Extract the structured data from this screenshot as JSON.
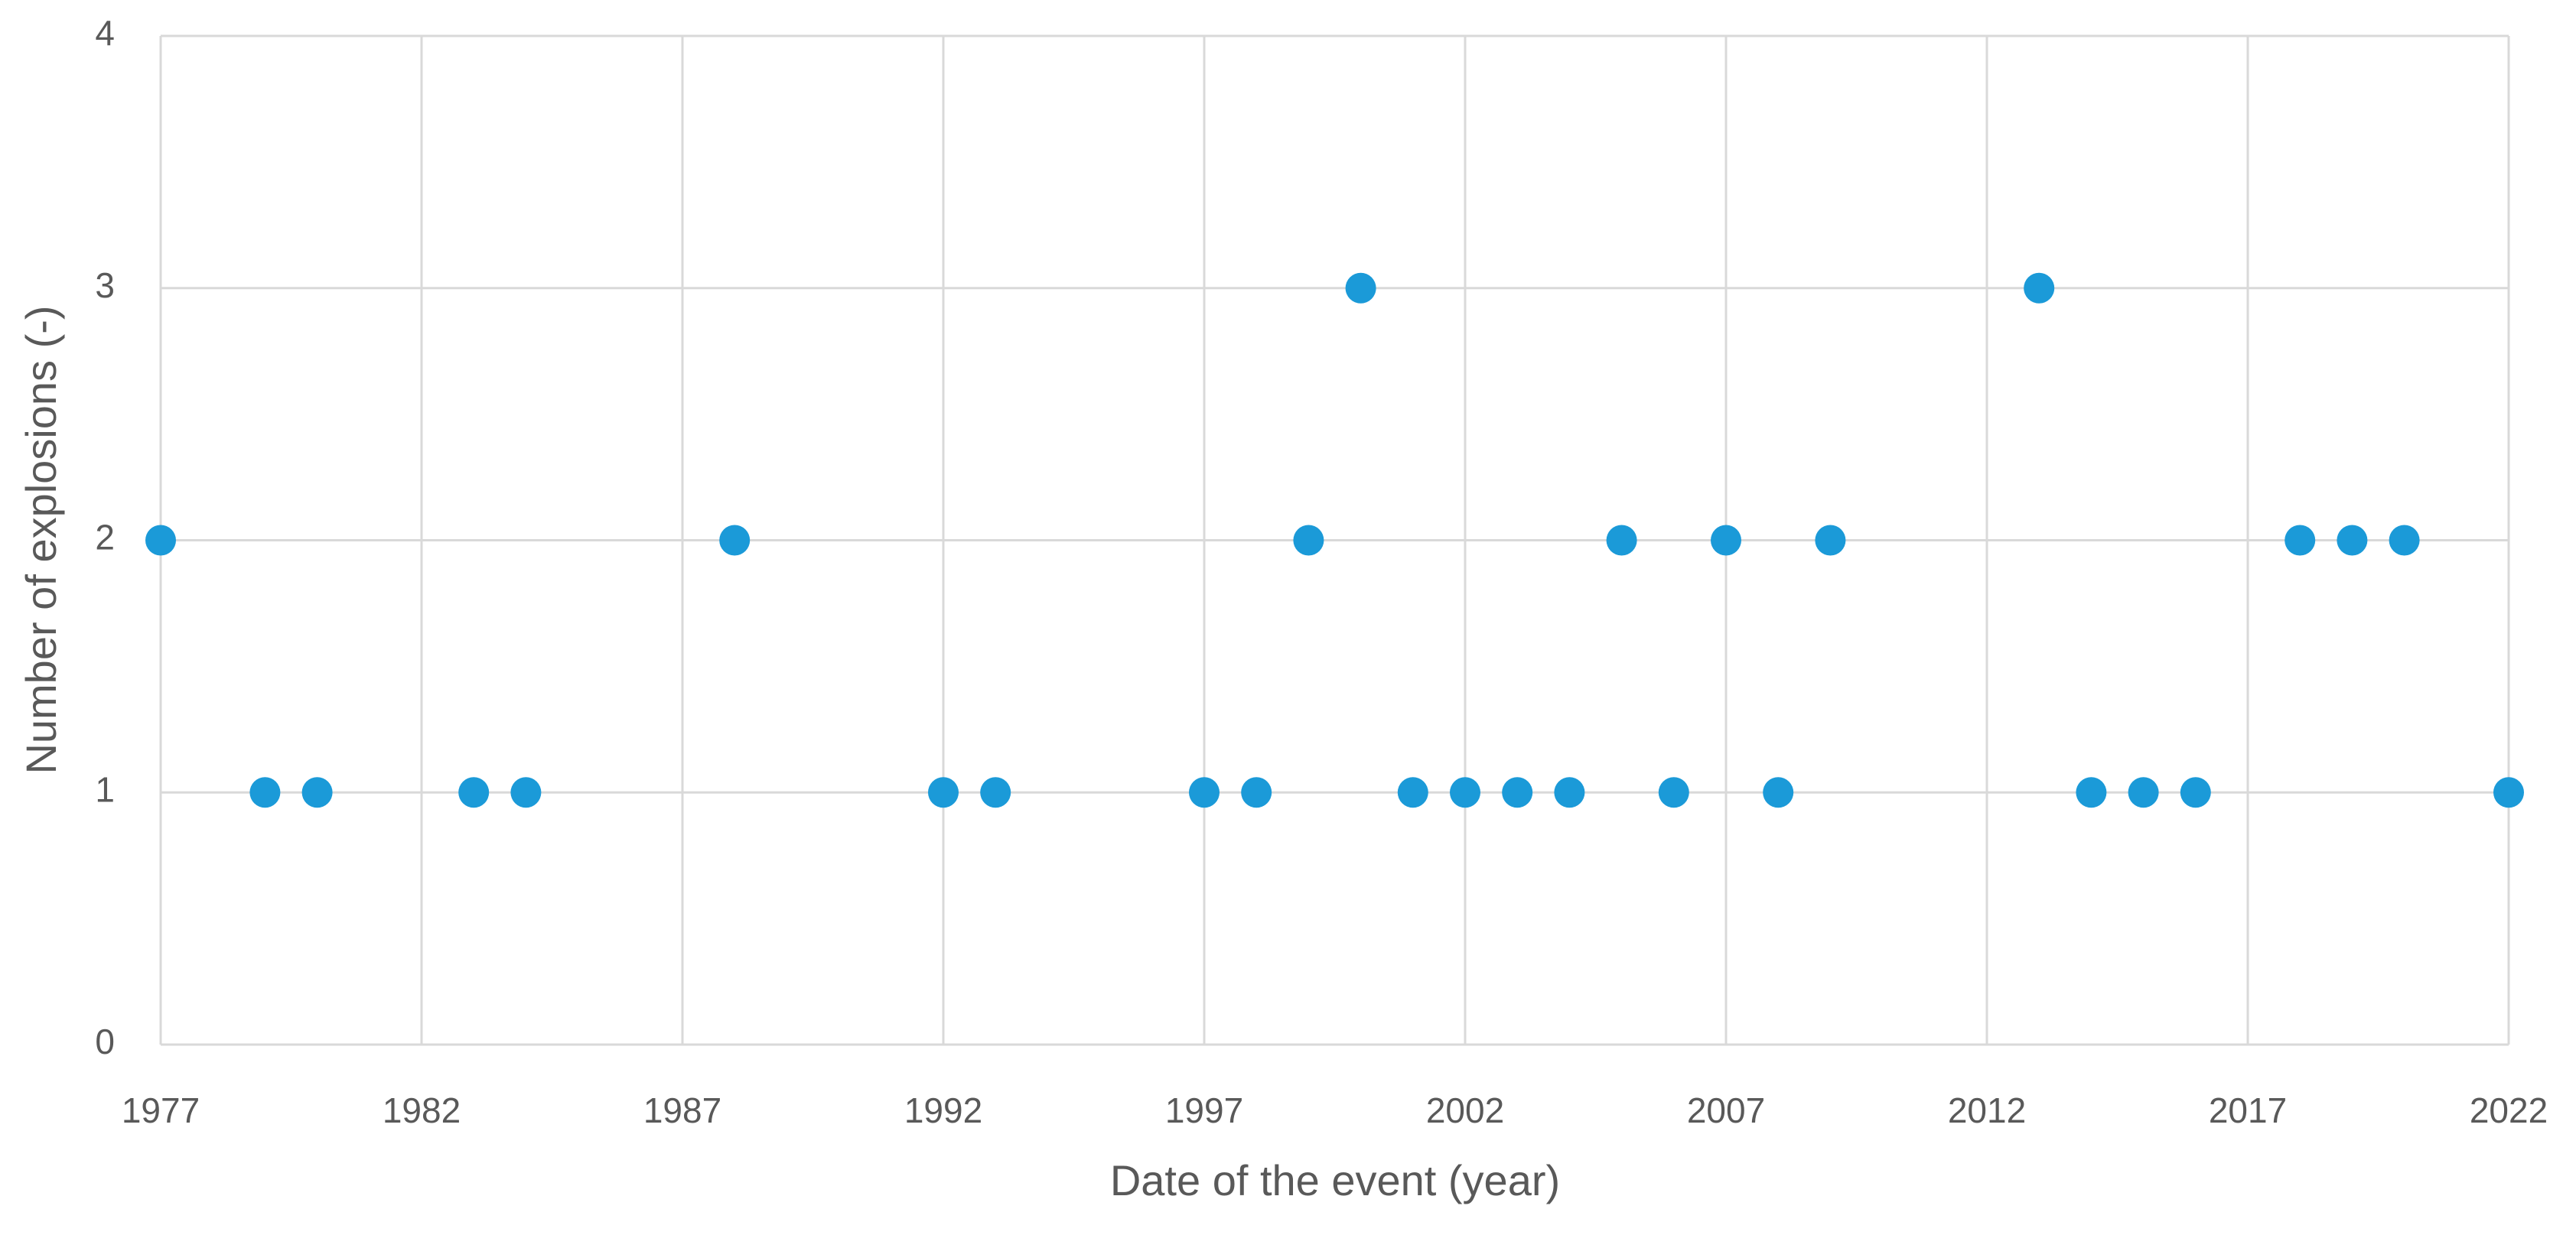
{
  "chart_data": {
    "type": "scatter",
    "x_label": "Date of the event (year)",
    "y_label": "Number of explosions (-)",
    "series": [
      {
        "color": "#1b9ad8",
        "x": [
          1977,
          1979,
          1980,
          1983,
          1984,
          1988,
          1992,
          1993,
          1997,
          1998,
          1999,
          2000,
          2001,
          2002,
          2003,
          2004,
          2005,
          2006,
          2007,
          2008,
          2009,
          2013,
          2014,
          2015,
          2016,
          2018,
          2019,
          2020,
          2022
        ],
        "values": [
          2,
          1,
          1,
          1,
          1,
          2,
          1,
          1,
          1,
          1,
          2,
          3,
          1,
          1,
          1,
          1,
          2,
          1,
          2,
          1,
          2,
          3,
          1,
          1,
          1,
          2,
          2,
          2,
          1
        ]
      }
    ],
    "xlim": [
      1977,
      2022
    ],
    "xticks": [
      1977,
      1982,
      1987,
      1992,
      1997,
      2002,
      2007,
      2012,
      2017,
      2022
    ],
    "ylim": [
      0,
      4
    ],
    "yticks": [
      0,
      1,
      2,
      3,
      4
    ],
    "grid": true
  }
}
